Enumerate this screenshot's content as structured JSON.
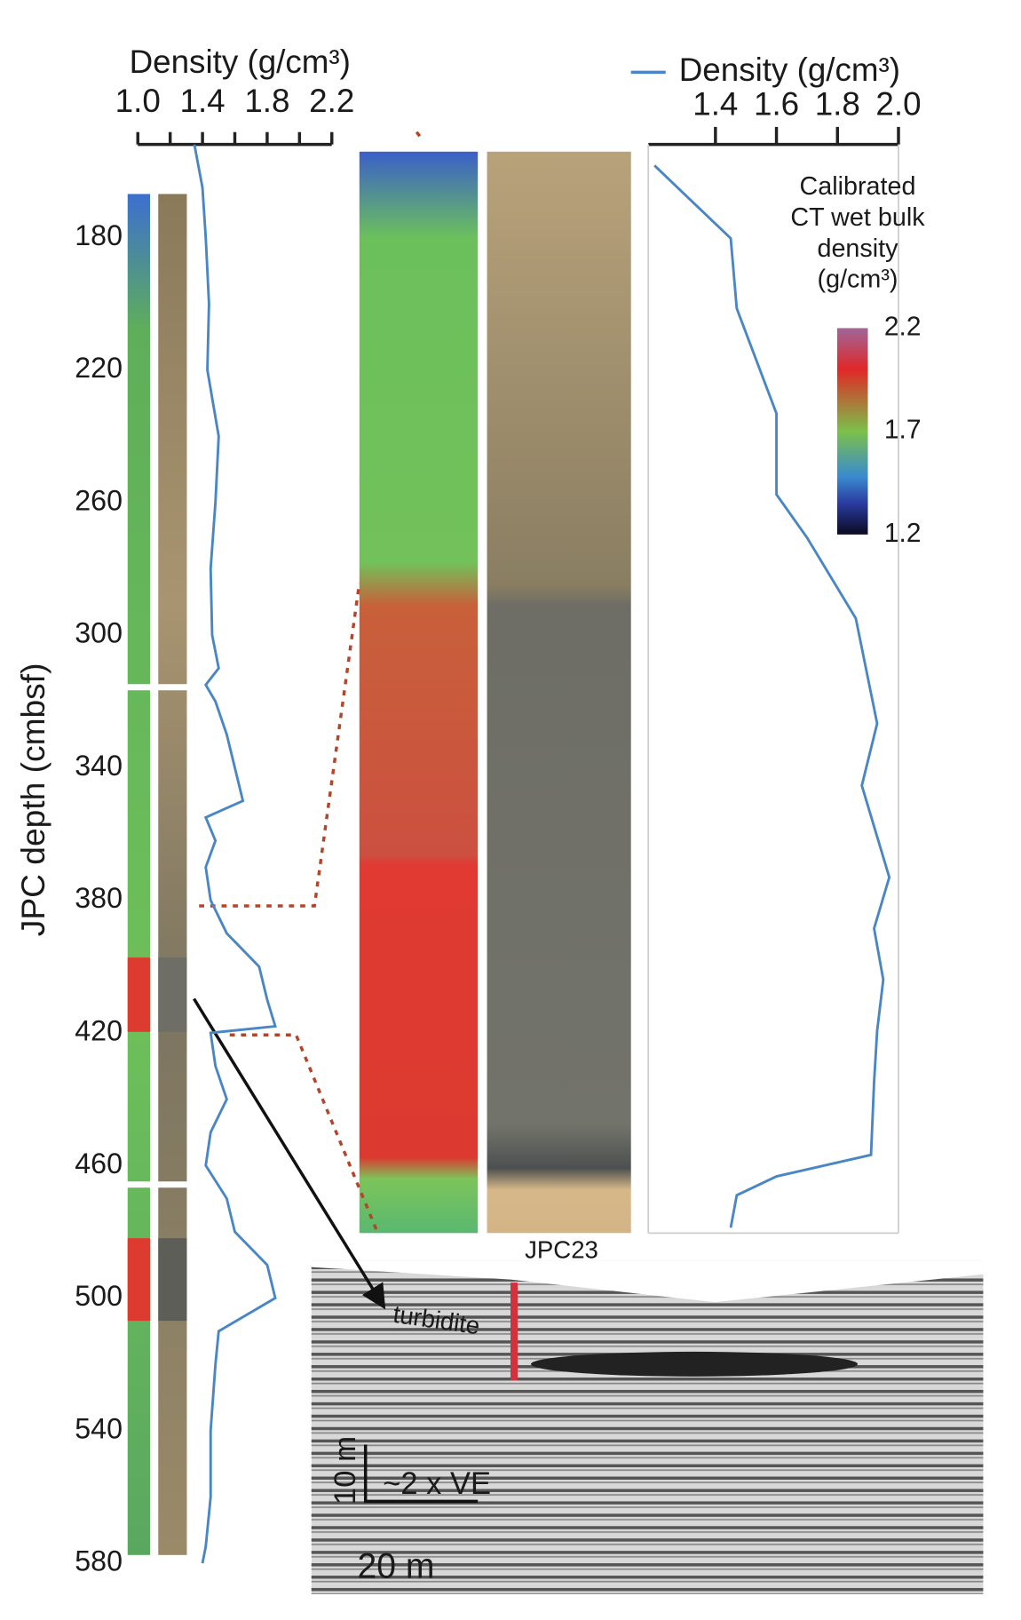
{
  "chart_data": [
    {
      "type": "depth-line",
      "xlabel": "Density (g/cm³)",
      "ylabel": "JPC depth (cmbsf)",
      "color": "#4a86c5",
      "xlim": [
        1.0,
        2.2
      ],
      "xticks": [
        {
          "value": 1,
          "label": "1.0"
        },
        1.4,
        1.8,
        2.2
      ],
      "xminor": [
        1.2,
        1.6,
        2.0
      ],
      "ylim": [
        150,
        580
      ],
      "yticks": [
        180,
        220,
        260,
        300,
        340,
        380,
        420,
        460,
        500,
        540,
        580
      ],
      "reversed_y": true,
      "depth": [
        152,
        165,
        180,
        200,
        220,
        240,
        260,
        280,
        300,
        310,
        315,
        320,
        330,
        340,
        350,
        355,
        362,
        370,
        380,
        390,
        400,
        410,
        418,
        420,
        430,
        440,
        450,
        460,
        470,
        480,
        490,
        500,
        510,
        520,
        540,
        560,
        575,
        580
      ],
      "values": [
        1.35,
        1.4,
        1.42,
        1.44,
        1.43,
        1.5,
        1.48,
        1.45,
        1.46,
        1.5,
        1.42,
        1.48,
        1.55,
        1.6,
        1.65,
        1.42,
        1.48,
        1.42,
        1.45,
        1.55,
        1.75,
        1.8,
        1.85,
        1.45,
        1.48,
        1.55,
        1.45,
        1.42,
        1.55,
        1.6,
        1.8,
        1.85,
        1.5,
        1.48,
        1.45,
        1.45,
        1.42,
        1.4
      ]
    },
    {
      "type": "depth-line",
      "xlim": [
        1.18,
        2.0
      ],
      "xticks": [
        1.4,
        1.6,
        1.8,
        {
          "value": 2,
          "label": "2.0"
        }
      ],
      "ylim": [
        380,
        420
      ],
      "reversed_y": true,
      "legend": "top-left",
      "depth": [
        380.4,
        383.1,
        385.7,
        389.6,
        392.6,
        394.2,
        397.2,
        401.1,
        403.4,
        406.8,
        408.7,
        410.6,
        412.5,
        414.4,
        417.1,
        417.9,
        418.6,
        419.8
      ],
      "series": [
        {
          "name": "Density (g/cm³)",
          "color": "#4a86c5",
          "values": [
            1.2,
            1.45,
            1.47,
            1.6,
            1.6,
            1.7,
            1.86,
            1.93,
            1.88,
            1.97,
            1.92,
            1.95,
            1.93,
            1.92,
            1.91,
            1.6,
            1.47,
            1.45
          ]
        }
      ],
      "colorbar": {
        "title": [
          "Calibrated",
          "CT wet bulk",
          "density",
          "(g/cm³)"
        ],
        "lim": [
          1.2,
          2.2
        ],
        "ticks": [
          1.2,
          1.7,
          2.2
        ]
      }
    }
  ],
  "seismic": {
    "core": "JPC23",
    "label": "turbidite",
    "vertical_scale": "10 m",
    "exaggeration": "~2 x VE",
    "horizontal_scale": "20 m"
  }
}
